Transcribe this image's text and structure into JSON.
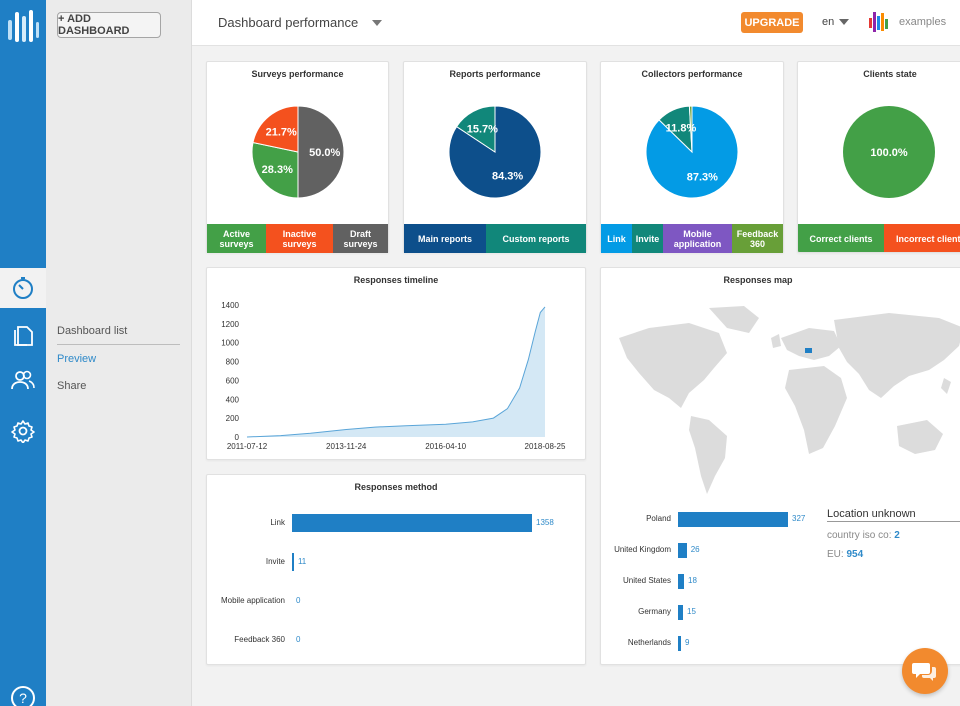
{
  "sidebar": {
    "add_dashboard": "+ ADD DASHBOARD",
    "menu": [
      "Dashboard list",
      "Preview",
      "Share"
    ],
    "help": "?"
  },
  "topbar": {
    "dashboard_name": "Dashboard performance",
    "upgrade": "UPGRADE",
    "language": "en",
    "brand": "examples"
  },
  "colors": {
    "primary": "#1f7fc5",
    "accent": "#f28a2e",
    "green": "#43a047",
    "red_orange": "#f4511e",
    "gray": "#616161",
    "navy": "#0d4f8b",
    "teal": "#11877a",
    "light_blue": "#039be5",
    "purple": "#7e57c2",
    "olive": "#689f38"
  },
  "cards": {
    "surveys": {
      "title": "Surveys performance",
      "slices": [
        {
          "label": "Active surveys",
          "value": 28.3,
          "text": "28.3%",
          "color": "#43a047"
        },
        {
          "label": "Inactive surveys",
          "value": 21.7,
          "text": "21.7%",
          "color": "#f4511e"
        },
        {
          "label": "Draft surveys",
          "value": 50.0,
          "text": "50.0%",
          "color": "#616161"
        }
      ],
      "legend": [
        {
          "l1": "Active",
          "l2": "surveys"
        },
        {
          "l1": "Inactive",
          "l2": "surveys"
        },
        {
          "l1": "Draft",
          "l2": "surveys"
        }
      ]
    },
    "reports": {
      "title": "Reports performance",
      "slices": [
        {
          "label": "Main reports",
          "value": 84.3,
          "text": "84.3%",
          "color": "#0d4f8b"
        },
        {
          "label": "Custom reports",
          "value": 15.7,
          "text": "15.7%",
          "color": "#11877a"
        }
      ],
      "legend": [
        {
          "l1": "Main reports",
          "l2": ""
        },
        {
          "l1": "Custom reports",
          "l2": ""
        }
      ]
    },
    "collectors": {
      "title": "Collectors performance",
      "slices": [
        {
          "label": "Link",
          "value": 87.3,
          "text": "87.3%",
          "color": "#039be5"
        },
        {
          "label": "Invite",
          "value": 11.8,
          "text": "11.8%",
          "color": "#11877a"
        },
        {
          "label": "Mobile application",
          "value": 0.0,
          "text": "",
          "color": "#7e57c2"
        },
        {
          "label": "Feedback 360",
          "value": 0.9,
          "text": "",
          "color": "#689f38"
        }
      ],
      "legend": [
        {
          "l1": "Link",
          "l2": ""
        },
        {
          "l1": "Invite",
          "l2": ""
        },
        {
          "l1": "Mobile",
          "l2": "application"
        },
        {
          "l1": "Feedback",
          "l2": "360"
        }
      ]
    },
    "clients": {
      "title": "Clients state",
      "slices": [
        {
          "label": "Correct clients",
          "value": 100.0,
          "text": "100.0%",
          "color": "#43a047"
        }
      ],
      "legend": [
        {
          "l1": "Correct clients",
          "l2": ""
        },
        {
          "l1": "Incorrect clients",
          "l2": ""
        }
      ]
    }
  },
  "chart_data": [
    {
      "type": "area",
      "title": "Responses timeline",
      "xlabel": "",
      "ylabel": "",
      "ylim": [
        0,
        1400
      ],
      "yticks": [
        0,
        200,
        400,
        600,
        800,
        1000,
        1200,
        1400
      ],
      "xticks": [
        "2011-07-12",
        "2013-11-24",
        "2016-04-10",
        "2018-08-25"
      ],
      "x": [
        "2011-07-12",
        "2012-05-01",
        "2013-01-15",
        "2013-11-24",
        "2014-08-01",
        "2015-05-01",
        "2016-04-10",
        "2016-12-01",
        "2017-06-01",
        "2017-10-01",
        "2018-01-15",
        "2018-04-01",
        "2018-06-01",
        "2018-07-15",
        "2018-08-25"
      ],
      "y": [
        0,
        15,
        40,
        80,
        105,
        120,
        135,
        160,
        200,
        300,
        520,
        820,
        1120,
        1320,
        1380
      ],
      "grid": false
    },
    {
      "type": "bar",
      "orientation": "horizontal",
      "title": "Responses method",
      "categories": [
        "Link",
        "Invite",
        "Mobile application",
        "Feedback 360"
      ],
      "values": [
        1358,
        11,
        0,
        0
      ]
    },
    {
      "type": "bar",
      "orientation": "horizontal",
      "title": "Responses map",
      "categories": [
        "Poland",
        "United Kingdom",
        "United States",
        "Germany",
        "Netherlands"
      ],
      "values": [
        327,
        26,
        18,
        15,
        9
      ]
    }
  ],
  "map_card": {
    "location_title": "Location unknown",
    "iso_label": "country iso co:",
    "iso_value": "2",
    "eu_label": "EU:",
    "eu_value": "954"
  }
}
